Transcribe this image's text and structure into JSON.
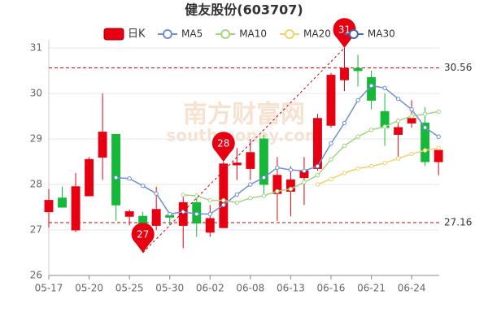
{
  "chart_data": {
    "type": "candlestick",
    "title": "健友股份(603707)",
    "categories": [
      "05-17",
      null,
      null,
      "05-20",
      null,
      null,
      "05-25",
      null,
      null,
      "05-30",
      null,
      null,
      "06-02",
      null,
      null,
      "06-08",
      null,
      null,
      "06-13",
      null,
      null,
      "06-16",
      null,
      null,
      "06-21",
      null,
      null,
      "06-24",
      null,
      null
    ],
    "ylim": [
      26,
      31
    ],
    "yticks": [
      26,
      27,
      28,
      29,
      30,
      31
    ],
    "grid": true,
    "up_color": "#e60012",
    "down_color": "#16b83a",
    "candles": {
      "name": "日K",
      "open": [
        27.4,
        27.7,
        27.0,
        27.75,
        28.6,
        29.1,
        27.3,
        27.3,
        27.1,
        27.32,
        27.1,
        27.6,
        26.95,
        27.05,
        28.43,
        28.35,
        29.0,
        27.8,
        27.85,
        28.15,
        28.35,
        29.3,
        30.3,
        30.55,
        30.35,
        29.6,
        29.1,
        29.35,
        29.35,
        28.5
      ],
      "close": [
        27.65,
        27.5,
        27.95,
        28.55,
        29.15,
        27.55,
        27.4,
        27.1,
        27.45,
        27.28,
        27.6,
        27.15,
        27.25,
        28.45,
        28.47,
        28.7,
        28.0,
        28.2,
        28.1,
        28.3,
        29.45,
        30.4,
        30.55,
        30.5,
        29.85,
        29.25,
        29.25,
        29.45,
        28.5,
        28.75
      ],
      "high": [
        27.9,
        27.95,
        28.25,
        28.6,
        30.0,
        29.1,
        27.45,
        27.4,
        27.95,
        27.4,
        27.75,
        27.7,
        27.55,
        28.5,
        28.8,
        29.0,
        29.1,
        28.6,
        28.4,
        28.6,
        29.55,
        30.45,
        31.0,
        30.85,
        30.5,
        30.0,
        29.35,
        29.85,
        29.7,
        28.75
      ],
      "low": [
        27.05,
        27.5,
        26.95,
        27.75,
        28.1,
        27.2,
        27.1,
        26.5,
        27.0,
        27.1,
        26.6,
        26.85,
        26.85,
        27.05,
        28.1,
        28.1,
        27.8,
        27.2,
        27.3,
        27.55,
        28.3,
        29.25,
        30.05,
        30.15,
        29.65,
        28.85,
        28.6,
        29.25,
        28.4,
        28.2
      ]
    },
    "ma": [
      {
        "name": "MA5",
        "color": "#6d8fd4",
        "values": [
          null,
          null,
          null,
          null,
          null,
          28.15,
          28.13,
          27.97,
          27.8,
          27.35,
          27.4,
          27.35,
          27.35,
          27.55,
          27.78,
          28.0,
          28.15,
          28.37,
          28.32,
          28.3,
          28.4,
          28.9,
          29.35,
          29.85,
          30.17,
          30.12,
          29.88,
          29.65,
          29.25,
          29.05
        ]
      },
      {
        "name": "MA10",
        "color": "#a3d47f",
        "values": [
          null,
          null,
          null,
          null,
          null,
          null,
          null,
          null,
          null,
          null,
          27.77,
          27.75,
          27.65,
          27.65,
          27.6,
          27.7,
          27.75,
          27.85,
          27.9,
          28.05,
          28.2,
          28.55,
          28.85,
          29.05,
          29.2,
          29.27,
          29.4,
          29.5,
          29.55,
          29.6
        ]
      },
      {
        "name": "MA20",
        "color": "#f7cf6b",
        "values": [
          null,
          null,
          null,
          null,
          null,
          null,
          null,
          null,
          null,
          null,
          null,
          null,
          null,
          null,
          null,
          null,
          null,
          null,
          null,
          null,
          28.0,
          28.12,
          28.25,
          28.35,
          28.4,
          28.47,
          28.57,
          28.67,
          28.75,
          28.8
        ]
      },
      {
        "name": "MA30",
        "color": "#4a64a8",
        "values": [
          null,
          null,
          null,
          null,
          null,
          null,
          null,
          null,
          null,
          null,
          null,
          null,
          null,
          null,
          null,
          null,
          null,
          null,
          null,
          null,
          null,
          null,
          null,
          null,
          null,
          null,
          null,
          null,
          null,
          null
        ]
      }
    ],
    "ref_lines": [
      30.56,
      27.16
    ],
    "ref_color": "#cc0000",
    "markers": [
      {
        "index": 22,
        "at": "high",
        "value": 31
      },
      {
        "index": 13,
        "at": "high",
        "value": 28
      },
      {
        "index": 7,
        "at": "low",
        "value": 27
      }
    ],
    "watermark": [
      "南方财富网",
      "southmoney.com"
    ]
  }
}
